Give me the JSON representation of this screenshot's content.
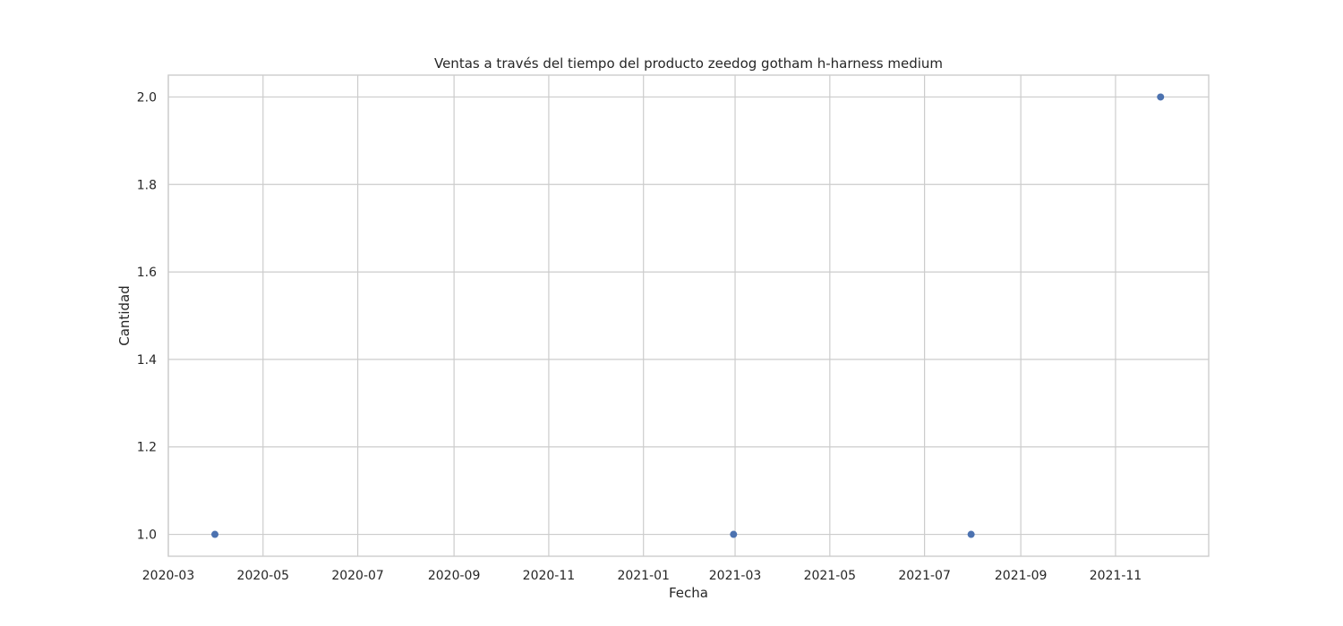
{
  "chart_data": {
    "type": "scatter",
    "title": "Ventas a través del tiempo del producto zeedog gotham h-harness medium",
    "xlabel": "Fecha",
    "ylabel": "Cantidad",
    "x_type": "date",
    "xlim": [
      "2020-03-01",
      "2021-12-31"
    ],
    "ylim": [
      0.95,
      2.05
    ],
    "x_ticks": [
      "2020-03",
      "2020-05",
      "2020-07",
      "2020-09",
      "2020-11",
      "2021-01",
      "2021-03",
      "2021-05",
      "2021-07",
      "2021-09",
      "2021-11"
    ],
    "y_ticks": [
      "1.0",
      "1.2",
      "1.4",
      "1.6",
      "1.8",
      "2.0"
    ],
    "grid": true,
    "series": [
      {
        "color": "#4c72b0",
        "points": [
          {
            "x": "2020-03-31",
            "y": 1
          },
          {
            "x": "2021-02-28",
            "y": 1
          },
          {
            "x": "2021-07-31",
            "y": 1
          },
          {
            "x": "2021-11-30",
            "y": 2
          }
        ]
      }
    ]
  }
}
